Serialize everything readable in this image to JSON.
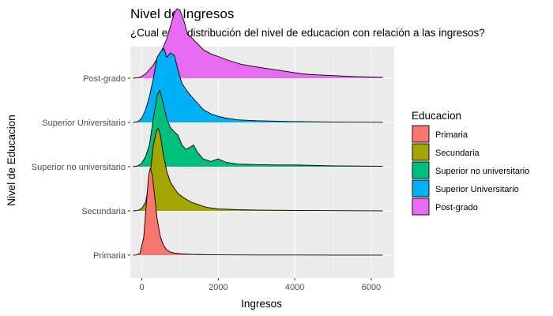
{
  "chart_data": {
    "type": "ridgeline",
    "title": "Nivel de Ingresos",
    "subtitle": "¿Cual es la distribución del nivel de educacion con relación a las ingresos?",
    "xlabel": "Ingresos",
    "ylabel": "Nivel de Educacion",
    "xlim": [
      -300,
      6600
    ],
    "x_ticks": [
      0,
      2000,
      4000,
      6000
    ],
    "grid": true,
    "legend_position": "right",
    "legend_title": "Educacion",
    "categories": [
      "Primaria",
      "Secundaria",
      "Superior no universitario",
      "Superior Universitario",
      "Post-grado"
    ],
    "series": [
      {
        "name": "Primaria",
        "color": "#F8766D",
        "density": [
          [
            -230,
            0
          ],
          [
            -150,
            0.002
          ],
          [
            -50,
            0.02
          ],
          [
            50,
            0.2
          ],
          [
            120,
            0.6
          ],
          [
            180,
            0.92
          ],
          [
            220,
            1.0
          ],
          [
            270,
            0.93
          ],
          [
            330,
            0.7
          ],
          [
            400,
            0.42
          ],
          [
            480,
            0.22
          ],
          [
            560,
            0.12
          ],
          [
            650,
            0.06
          ],
          [
            750,
            0.035
          ],
          [
            850,
            0.025
          ],
          [
            950,
            0.02
          ],
          [
            1100,
            0.015
          ],
          [
            1300,
            0.01
          ],
          [
            1600,
            0.006
          ],
          [
            2000,
            0.004
          ],
          [
            2500,
            0.003
          ],
          [
            3000,
            0.002
          ],
          [
            4000,
            0.0015
          ],
          [
            5000,
            0.001
          ],
          [
            6300,
            0.0005
          ]
        ]
      },
      {
        "name": "Secundaria",
        "color": "#A3A500",
        "density": [
          [
            -230,
            0
          ],
          [
            -100,
            0.005
          ],
          [
            0,
            0.03
          ],
          [
            100,
            0.1
          ],
          [
            200,
            0.35
          ],
          [
            300,
            0.75
          ],
          [
            380,
            0.92
          ],
          [
            430,
            0.95
          ],
          [
            480,
            0.88
          ],
          [
            550,
            0.68
          ],
          [
            650,
            0.46
          ],
          [
            750,
            0.33
          ],
          [
            850,
            0.26
          ],
          [
            950,
            0.2
          ],
          [
            1100,
            0.15
          ],
          [
            1300,
            0.1
          ],
          [
            1500,
            0.07
          ],
          [
            1700,
            0.04
          ],
          [
            2000,
            0.025
          ],
          [
            2500,
            0.014
          ],
          [
            3000,
            0.01
          ],
          [
            3500,
            0.007
          ],
          [
            4000,
            0.005
          ],
          [
            5000,
            0.003
          ],
          [
            6300,
            0.001
          ]
        ]
      },
      {
        "name": "Superior no universitario",
        "color": "#00BF7D",
        "density": [
          [
            -230,
            0
          ],
          [
            -100,
            0.01
          ],
          [
            0,
            0.04
          ],
          [
            100,
            0.12
          ],
          [
            200,
            0.25
          ],
          [
            300,
            0.55
          ],
          [
            400,
            0.82
          ],
          [
            470,
            0.88
          ],
          [
            550,
            0.75
          ],
          [
            650,
            0.55
          ],
          [
            750,
            0.45
          ],
          [
            850,
            0.4
          ],
          [
            950,
            0.36
          ],
          [
            1050,
            0.25
          ],
          [
            1150,
            0.2
          ],
          [
            1250,
            0.22
          ],
          [
            1350,
            0.25
          ],
          [
            1450,
            0.17
          ],
          [
            1600,
            0.09
          ],
          [
            1800,
            0.06
          ],
          [
            2000,
            0.09
          ],
          [
            2200,
            0.05
          ],
          [
            2500,
            0.03
          ],
          [
            3000,
            0.025
          ],
          [
            3500,
            0.02
          ],
          [
            4000,
            0.02
          ],
          [
            5000,
            0.01
          ],
          [
            6300,
            0.005
          ]
        ]
      },
      {
        "name": "Superior Universitario",
        "color": "#00B0F6",
        "density": [
          [
            -230,
            0
          ],
          [
            -100,
            0.01
          ],
          [
            0,
            0.05
          ],
          [
            100,
            0.15
          ],
          [
            200,
            0.3
          ],
          [
            300,
            0.5
          ],
          [
            400,
            0.75
          ],
          [
            500,
            0.82
          ],
          [
            580,
            0.85
          ],
          [
            650,
            0.75
          ],
          [
            750,
            0.8
          ],
          [
            850,
            0.77
          ],
          [
            950,
            0.6
          ],
          [
            1050,
            0.45
          ],
          [
            1200,
            0.35
          ],
          [
            1400,
            0.25
          ],
          [
            1600,
            0.15
          ],
          [
            1800,
            0.1
          ],
          [
            2000,
            0.07
          ],
          [
            2200,
            0.05
          ],
          [
            2500,
            0.03
          ],
          [
            3000,
            0.02
          ],
          [
            4000,
            0.01
          ],
          [
            5000,
            0.005
          ],
          [
            6300,
            0.002
          ]
        ]
      },
      {
        "name": "Post-grado",
        "color": "#E76BF3",
        "density": [
          [
            -230,
            0
          ],
          [
            -50,
            0.01
          ],
          [
            100,
            0.05
          ],
          [
            300,
            0.15
          ],
          [
            500,
            0.3
          ],
          [
            650,
            0.45
          ],
          [
            750,
            0.6
          ],
          [
            850,
            0.75
          ],
          [
            920,
            0.8
          ],
          [
            1000,
            0.78
          ],
          [
            1100,
            0.66
          ],
          [
            1200,
            0.5
          ],
          [
            1300,
            0.47
          ],
          [
            1400,
            0.42
          ],
          [
            1500,
            0.38
          ],
          [
            1600,
            0.33
          ],
          [
            1800,
            0.28
          ],
          [
            2000,
            0.25
          ],
          [
            2300,
            0.2
          ],
          [
            2600,
            0.16
          ],
          [
            3000,
            0.13
          ],
          [
            3300,
            0.11
          ],
          [
            3600,
            0.09
          ],
          [
            3900,
            0.07
          ],
          [
            4200,
            0.05
          ],
          [
            4500,
            0.04
          ],
          [
            5000,
            0.03
          ],
          [
            5500,
            0.02
          ],
          [
            6300,
            0.01
          ]
        ]
      }
    ]
  }
}
